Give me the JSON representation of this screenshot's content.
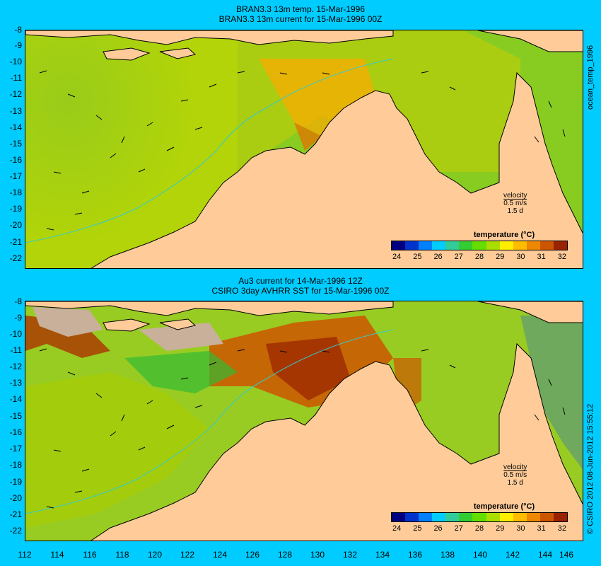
{
  "top_panel": {
    "title_line1": "BRAN3.3 13m temp. 15-Mar-1996",
    "title_line2": "BRAN3.3 13m current for 15-Mar-1996 00Z",
    "side_label": "ocean_temp_1996",
    "legend_title": "temperature (°C)",
    "velocity_label": "velocity",
    "velocity_speed": "0.5 m/s",
    "velocity_time": "1.5 d"
  },
  "bottom_panel": {
    "title_line1": "Au3 current for 14-Mar-1996 12Z",
    "title_line2": "CSIRO 3day AVHRR SST for 15-Mar-1996 00Z",
    "side_label": "© CSIRO 2012  08-Jun-2012 15:55:12",
    "legend_title": "temperature (°C)",
    "velocity_label": "velocity",
    "velocity_speed": "0.5 m/s",
    "velocity_time": "1.5 d"
  },
  "lat_ticks": [
    "-8",
    "-9",
    "-10",
    "-11",
    "-12",
    "-13",
    "-14",
    "-15",
    "-16",
    "-17",
    "-18",
    "-19",
    "-20",
    "-21",
    "-22"
  ],
  "lon_ticks": [
    "112",
    "114",
    "116",
    "118",
    "120",
    "122",
    "124",
    "126",
    "128",
    "130",
    "132",
    "134",
    "136",
    "138",
    "140",
    "142",
    "144",
    "146"
  ],
  "colorbar_ticks": [
    "24",
    "25",
    "26",
    "27",
    "28",
    "29",
    "30",
    "31",
    "32"
  ],
  "colors": {
    "background": "#00ccff",
    "land": "#ffcc99",
    "cloud": "#c8b09a",
    "coast": "#000000"
  },
  "colorbar_colors": [
    "#000080",
    "#0033cc",
    "#0080ff",
    "#00ccff",
    "#33cc99",
    "#33cc33",
    "#66dd00",
    "#aadd00",
    "#ffee00",
    "#ffbb00",
    "#ee8800",
    "#cc5500",
    "#992200"
  ]
}
